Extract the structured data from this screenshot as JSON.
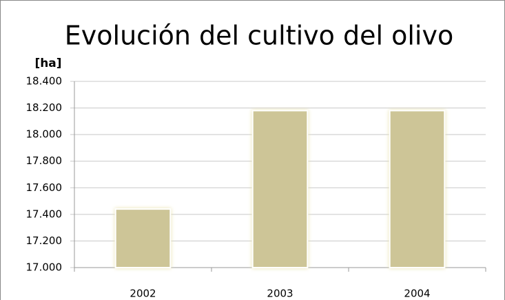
{
  "chart_data": {
    "type": "bar",
    "title": "Evolución del cultivo del olivo",
    "y_label": "[ha]",
    "categories": [
      "2002",
      "2003",
      "2004"
    ],
    "values": [
      17440,
      18180,
      18180
    ],
    "color": "#cdc597",
    "ylim": [
      17000,
      18400
    ],
    "yticks": [
      {
        "value": 17000,
        "label": "17.000"
      },
      {
        "value": 17200,
        "label": "17.200"
      },
      {
        "value": 17400,
        "label": "17.400"
      },
      {
        "value": 17600,
        "label": "17.600"
      },
      {
        "value": 17800,
        "label": "17.800"
      },
      {
        "value": 18000,
        "label": "18.000"
      },
      {
        "value": 18200,
        "label": "18.200"
      },
      {
        "value": 18400,
        "label": "18.400"
      }
    ],
    "grid": true
  }
}
